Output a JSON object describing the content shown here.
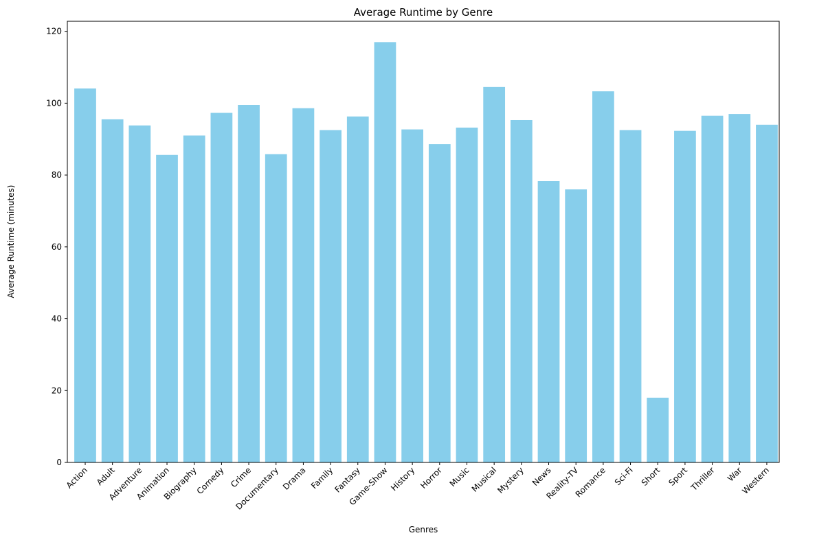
{
  "chart_data": {
    "type": "bar",
    "title": "Average Runtime by Genre",
    "xlabel": "Genres",
    "ylabel": "Average Runtime (minutes)",
    "ylim": [
      0,
      122.8
    ],
    "yticks": [
      0,
      20,
      40,
      60,
      80,
      100,
      120
    ],
    "grid": false,
    "bar_color": "#87ceeb",
    "categories": [
      "Action",
      "Adult",
      "Adventure",
      "Animation",
      "Biography",
      "Comedy",
      "Crime",
      "Documentary",
      "Drama",
      "Family",
      "Fantasy",
      "Game-Show",
      "History",
      "Horror",
      "Music",
      "Musical",
      "Mystery",
      "News",
      "Reality-TV",
      "Romance",
      "Sci-Fi",
      "Short",
      "Sport",
      "Thriller",
      "War",
      "Western"
    ],
    "values": [
      104.1,
      95.5,
      93.8,
      85.6,
      91.0,
      97.3,
      99.5,
      85.8,
      98.6,
      92.5,
      96.3,
      117.0,
      92.7,
      88.6,
      93.2,
      104.5,
      95.3,
      78.3,
      76.0,
      103.3,
      92.5,
      18.0,
      92.3,
      96.5,
      97.0,
      94.0
    ]
  }
}
